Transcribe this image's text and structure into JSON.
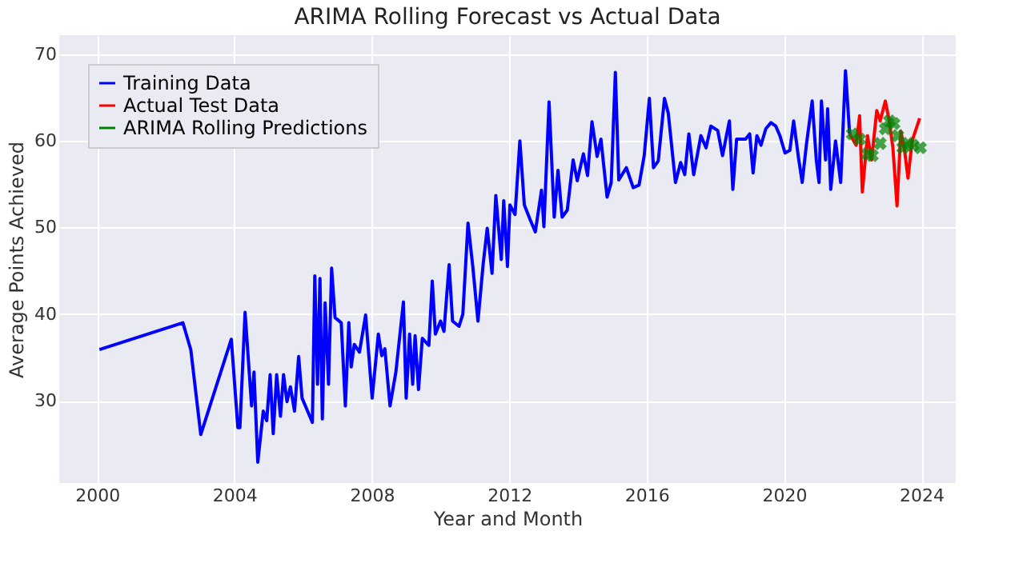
{
  "chart_data": {
    "type": "line",
    "title": "ARIMA Rolling Forecast vs Actual Data",
    "xlabel": "Year and Month",
    "ylabel": "Average Points Achieved",
    "xlim": [
      1998.9,
      2025.0
    ],
    "xticks": [
      2000,
      2004,
      2008,
      2012,
      2016,
      2020,
      2024
    ],
    "ylim": [
      20.5,
      72.2
    ],
    "yticks": [
      30,
      40,
      50,
      60,
      70
    ],
    "grid": true,
    "legend": "top left",
    "series": [
      {
        "name": "Training Data",
        "color": "#0000ff",
        "x": [
          2000.07,
          2002.5,
          2002.73,
          2003.02,
          2003.91,
          2004.1,
          2004.16,
          2004.31,
          2004.5,
          2004.57,
          2004.68,
          2004.84,
          2004.94,
          2005.04,
          2005.13,
          2005.23,
          2005.34,
          2005.43,
          2005.53,
          2005.63,
          2005.75,
          2005.87,
          2005.97,
          2006.27,
          2006.34,
          2006.42,
          2006.49,
          2006.56,
          2006.64,
          2006.74,
          2006.83,
          2006.93,
          2007.11,
          2007.23,
          2007.33,
          2007.4,
          2007.49,
          2007.64,
          2007.82,
          2008.01,
          2008.19,
          2008.29,
          2008.38,
          2008.53,
          2008.7,
          2008.92,
          2009.0,
          2009.1,
          2009.19,
          2009.26,
          2009.36,
          2009.47,
          2009.66,
          2009.76,
          2009.85,
          2010.0,
          2010.1,
          2010.25,
          2010.35,
          2010.54,
          2010.65,
          2010.8,
          2010.94,
          2011.09,
          2011.24,
          2011.36,
          2011.5,
          2011.61,
          2011.77,
          2011.84,
          2011.95,
          2012.02,
          2012.17,
          2012.31,
          2012.44,
          2012.61,
          2012.76,
          2012.94,
          2013.01,
          2013.16,
          2013.31,
          2013.42,
          2013.54,
          2013.69,
          2013.86,
          2013.98,
          2014.16,
          2014.28,
          2014.41,
          2014.56,
          2014.67,
          2014.85,
          2014.97,
          2015.09,
          2015.19,
          2015.41,
          2015.61,
          2015.78,
          2015.93,
          2016.08,
          2016.2,
          2016.34,
          2016.52,
          2016.63,
          2016.84,
          2016.99,
          2017.11,
          2017.23,
          2017.37,
          2017.58,
          2017.73,
          2017.87,
          2018.07,
          2018.21,
          2018.41,
          2018.51,
          2018.62,
          2018.88,
          2019.0,
          2019.1,
          2019.21,
          2019.33,
          2019.47,
          2019.62,
          2019.76,
          2019.88,
          2020.03,
          2020.17,
          2020.28,
          2020.42,
          2020.53,
          2020.65,
          2020.82,
          2020.94,
          2021.02,
          2021.09,
          2021.21,
          2021.27,
          2021.36,
          2021.5,
          2021.65,
          2021.79,
          2021.91
        ],
        "values": [
          35.9,
          39.0,
          35.9,
          26.1,
          37.1,
          26.9,
          26.9,
          40.2,
          29.4,
          33.3,
          22.9,
          28.8,
          27.7,
          33.0,
          26.2,
          33.0,
          28.2,
          33.0,
          29.9,
          31.6,
          28.8,
          35.1,
          30.3,
          27.5,
          44.4,
          31.9,
          44.1,
          27.9,
          41.3,
          31.9,
          45.3,
          39.6,
          39.0,
          29.4,
          39.0,
          33.9,
          36.5,
          35.6,
          39.9,
          30.3,
          37.7,
          35.2,
          36.0,
          29.4,
          33.3,
          41.4,
          30.3,
          37.7,
          31.9,
          37.5,
          31.3,
          37.2,
          36.4,
          43.8,
          37.7,
          39.2,
          38.0,
          45.7,
          39.2,
          38.6,
          40.0,
          50.5,
          45.5,
          39.2,
          45.7,
          49.9,
          44.7,
          53.7,
          46.3,
          53.1,
          45.5,
          52.6,
          51.5,
          60.0,
          52.6,
          50.9,
          49.5,
          54.3,
          50.1,
          64.5,
          51.2,
          56.6,
          51.2,
          52.0,
          57.8,
          55.4,
          58.5,
          56.0,
          62.2,
          58.2,
          60.2,
          53.5,
          55.2,
          67.9,
          55.5,
          56.9,
          54.6,
          54.9,
          58.3,
          64.9,
          56.9,
          57.7,
          64.9,
          63.2,
          55.2,
          57.5,
          56.1,
          60.8,
          56.1,
          60.6,
          59.2,
          61.7,
          61.2,
          58.3,
          62.3,
          54.4,
          60.2,
          60.2,
          60.8,
          56.3,
          60.6,
          59.5,
          61.4,
          62.1,
          61.7,
          60.6,
          58.6,
          58.9,
          62.3,
          58.1,
          55.2,
          59.5,
          64.6,
          57.8,
          55.2,
          64.6,
          57.8,
          63.7,
          54.4,
          60.0,
          55.2,
          68.1,
          60.8
        ]
      },
      {
        "name": "Actual Test Data",
        "color": "#ff0000",
        "x": [
          2021.91,
          2022.1,
          2022.2,
          2022.28,
          2022.43,
          2022.55,
          2022.7,
          2022.8,
          2022.95,
          2023.05,
          2023.17,
          2023.29,
          2023.4,
          2023.5,
          2023.61,
          2023.73,
          2023.95
        ],
        "values": [
          60.8,
          59.5,
          62.9,
          54.1,
          60.6,
          57.8,
          63.5,
          62.3,
          64.6,
          62.6,
          59.2,
          52.5,
          61.1,
          59.2,
          55.7,
          60.0,
          62.6
        ]
      },
      {
        "name": "ARIMA Rolling Predictions",
        "color": "#008000",
        "type": "scatter",
        "marker": "cross",
        "x": [
          2021.99,
          2022.2,
          2022.43,
          2022.57,
          2022.8,
          2022.95,
          2023.07,
          2023.2,
          2023.31,
          2023.46,
          2023.61,
          2023.75,
          2023.97
        ],
        "values": [
          60.8,
          60.2,
          58.5,
          58.3,
          59.7,
          61.4,
          62.3,
          62.0,
          60.6,
          59.2,
          59.7,
          59.5,
          59.2
        ]
      }
    ]
  }
}
